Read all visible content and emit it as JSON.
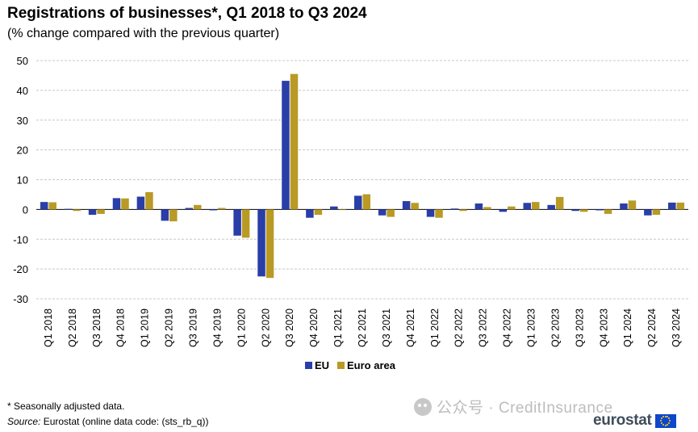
{
  "title": "Registrations of businesses*, Q1 2018 to Q3 2024",
  "subtitle": "(% change compared with the previous quarter)",
  "footnote": "* Seasonally adjusted data.",
  "source_label": "Source:",
  "source_text": " Eurostat (online data code: (sts_rb_q))",
  "watermark": "公众号 · CreditInsurance",
  "logo_text": "eurostat",
  "colors": {
    "EU": "#2a3ea8",
    "Euro area": "#b99a24",
    "grid": "#c8c8c8"
  },
  "chart_data": {
    "type": "bar",
    "categories": [
      "Q1 2018",
      "Q2 2018",
      "Q3 2018",
      "Q4 2018",
      "Q1 2019",
      "Q2 2019",
      "Q3 2019",
      "Q4 2019",
      "Q1 2020",
      "Q2 2020",
      "Q3 2020",
      "Q4 2020",
      "Q1 2021",
      "Q2 2021",
      "Q3 2021",
      "Q4 2021",
      "Q1 2022",
      "Q2 2022",
      "Q3 2022",
      "Q4 2022",
      "Q1 2023",
      "Q2 2023",
      "Q3 2023",
      "Q4 2023",
      "Q1 2024",
      "Q2 2024",
      "Q3 2024"
    ],
    "series": [
      {
        "name": "EU",
        "values": [
          2.5,
          0.2,
          -1.8,
          3.8,
          4.3,
          -3.8,
          0.5,
          -0.3,
          -8.8,
          -22.5,
          43.2,
          -2.8,
          1.0,
          4.6,
          -2.0,
          2.8,
          -2.5,
          0.3,
          2.0,
          -0.8,
          2.2,
          1.5,
          -0.5,
          -0.3,
          2.0,
          -2.0,
          2.3
        ]
      },
      {
        "name": "Euro area",
        "values": [
          2.4,
          -0.5,
          -1.5,
          3.7,
          5.8,
          -4.0,
          1.5,
          0.5,
          -9.5,
          -23.0,
          45.5,
          -1.8,
          -0.2,
          5.1,
          -2.5,
          2.2,
          -2.8,
          -0.5,
          0.8,
          1.0,
          2.5,
          4.2,
          -0.8,
          -1.5,
          3.0,
          -1.8,
          2.3
        ]
      }
    ],
    "ylim": [
      -30,
      50
    ],
    "yticks": [
      50,
      40,
      30,
      20,
      10,
      0,
      -10,
      -20,
      -30
    ],
    "grid": true,
    "legend": "bottom-center"
  }
}
